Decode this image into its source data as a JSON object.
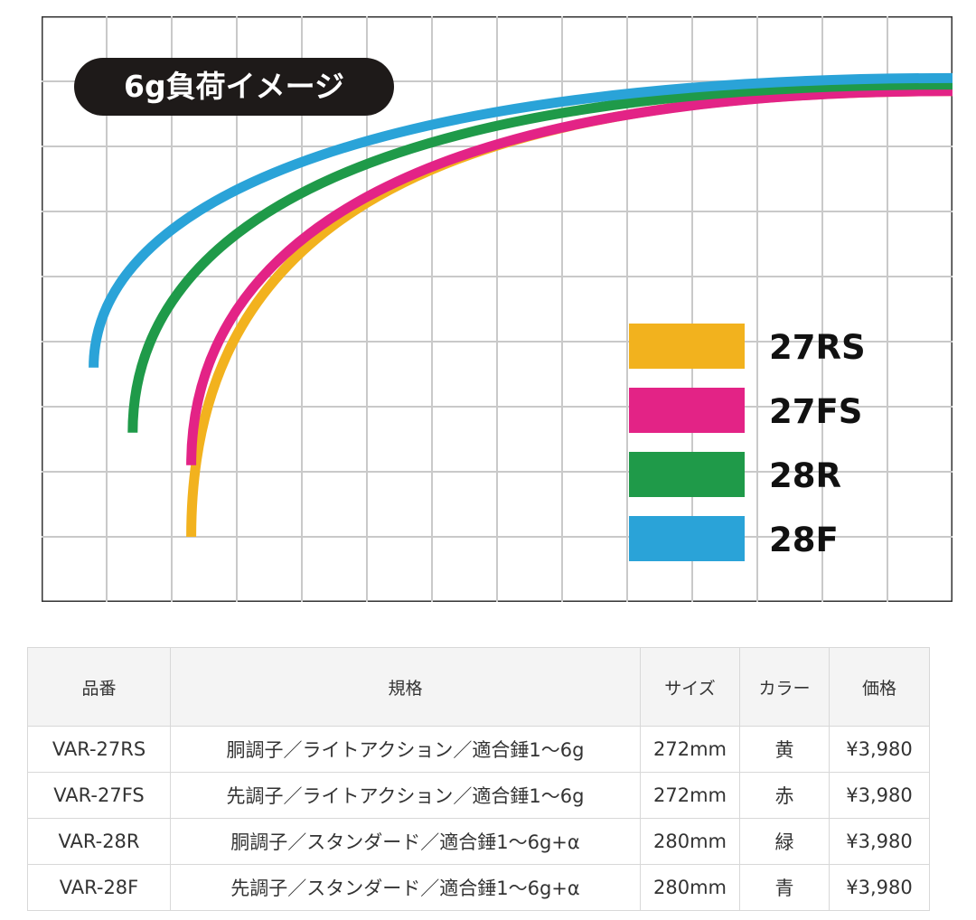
{
  "chart_data": {
    "type": "line",
    "title": "6g負荷イメージ",
    "xlabel": "",
    "ylabel": "",
    "grid": true,
    "legend": "bottom-right",
    "series": [
      {
        "name": "27RS",
        "color": "#f2b21e",
        "start": [
          2.3,
          8.0
        ],
        "end": [
          14.0,
          1.15
        ],
        "bend": 0.42
      },
      {
        "name": "27FS",
        "color": "#e32386",
        "start": [
          2.3,
          6.9
        ],
        "end": [
          14.0,
          1.15
        ],
        "bend": 0.5
      },
      {
        "name": "28R",
        "color": "#1f9a49",
        "start": [
          1.4,
          6.4
        ],
        "end": [
          14.0,
          1.05
        ],
        "bend": 0.5
      },
      {
        "name": "28F",
        "color": "#2aa3d8",
        "start": [
          0.8,
          5.4
        ],
        "end": [
          14.0,
          0.95
        ],
        "bend": 0.55
      }
    ],
    "xlim": [
      0,
      14
    ],
    "ylim": [
      0,
      9
    ]
  },
  "table": {
    "headers": [
      "品番",
      "規格",
      "サイズ",
      "カラー",
      "価格"
    ],
    "rows": [
      [
        "VAR-27RS",
        "胴調子／ライトアクション／適合錘1～6g",
        "272mm",
        "黄",
        "¥3,980"
      ],
      [
        "VAR-27FS",
        "先調子／ライトアクション／適合錘1～6g",
        "272mm",
        "赤",
        "¥3,980"
      ],
      [
        "VAR-28R",
        "胴調子／スタンダード／適合錘1～6g+α",
        "280mm",
        "緑",
        "¥3,980"
      ],
      [
        "VAR-28F",
        "先調子／スタンダード／適合錘1～6g+α",
        "280mm",
        "青",
        "¥3,980"
      ]
    ]
  }
}
